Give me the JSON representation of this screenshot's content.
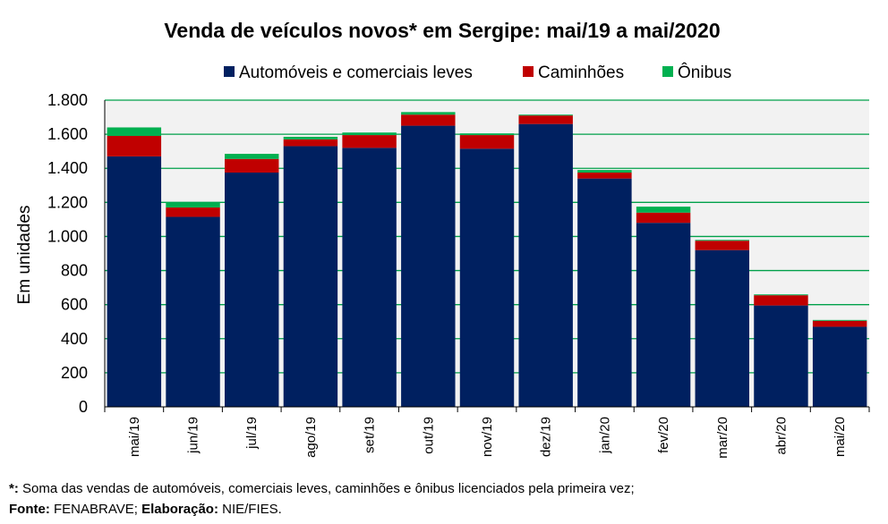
{
  "chart_data": {
    "type": "bar",
    "stacked": true,
    "title": "Venda de veículos novos* em Sergipe: mai/19 a mai/2020",
    "ylabel": "Em unidades",
    "xlabel": "",
    "ylim": [
      0,
      1800
    ],
    "yticks": [
      0,
      200,
      400,
      600,
      800,
      1000,
      1200,
      1400,
      1600,
      1800
    ],
    "ytick_labels": [
      "0",
      "200",
      "400",
      "600",
      "800",
      "1.000",
      "1.200",
      "1.400",
      "1.600",
      "1.800"
    ],
    "categories": [
      "mai/19",
      "jun/19",
      "jul/19",
      "ago/19",
      "set/19",
      "out/19",
      "nov/19",
      "dez/19",
      "jan/20",
      "fev/20",
      "mar/20",
      "abr/20",
      "mai/20"
    ],
    "series": [
      {
        "name": "Automóveis e comerciais leves",
        "color": "#002060",
        "values": [
          1470,
          1115,
          1375,
          1530,
          1520,
          1650,
          1515,
          1660,
          1340,
          1080,
          920,
          595,
          470
        ]
      },
      {
        "name": "Caminhões",
        "color": "#C00000",
        "values": [
          120,
          55,
          80,
          40,
          75,
          65,
          80,
          50,
          35,
          60,
          55,
          60,
          35
        ]
      },
      {
        "name": "Ônibus",
        "color": "#00B050",
        "values": [
          50,
          30,
          30,
          15,
          15,
          15,
          10,
          5,
          15,
          35,
          5,
          5,
          5
        ]
      }
    ],
    "grid": true,
    "legend_position": "top"
  },
  "colors": {
    "plot_background": "#F2F2F2",
    "gridline": "#00A04A",
    "axis": "#000000"
  },
  "footnotes": {
    "note_label": "*:",
    "note_text": " Soma das vendas de automóveis, comerciais leves, caminhões e ônibus licenciados pela primeira vez;",
    "source_label": "Fonte:",
    "source_text": " FENABRAVE; ",
    "elab_label": "Elaboração:",
    "elab_text": " NIE/FIES."
  }
}
